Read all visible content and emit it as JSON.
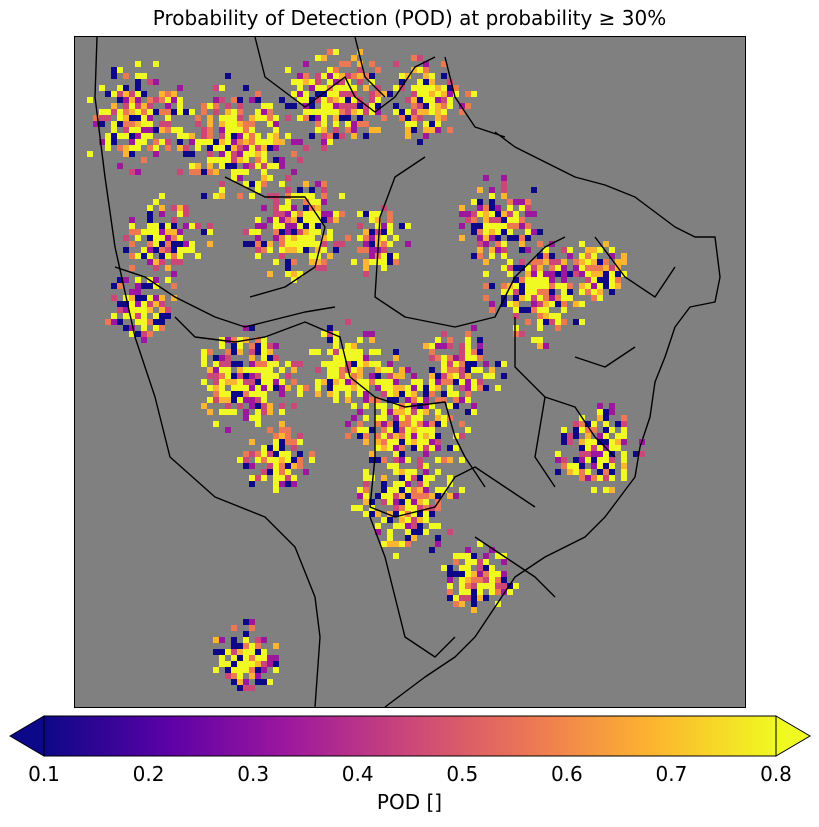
{
  "title": "Probability of Detection (POD) at probability ≥ 30%",
  "map": {
    "background_color": "#808080",
    "border_color": "#000000",
    "colormap": "plasma",
    "value_range": [
      0.1,
      0.8
    ],
    "extend": "both"
  },
  "colorbar": {
    "label": "POD []",
    "ticks": [
      "0.1",
      "0.2",
      "0.3",
      "0.4",
      "0.5",
      "0.6",
      "0.7",
      "0.8"
    ],
    "stops": [
      "#0d0887",
      "#5c01a6",
      "#9c179e",
      "#cc4778",
      "#ed7953",
      "#fdb42f",
      "#f0f921"
    ]
  }
}
